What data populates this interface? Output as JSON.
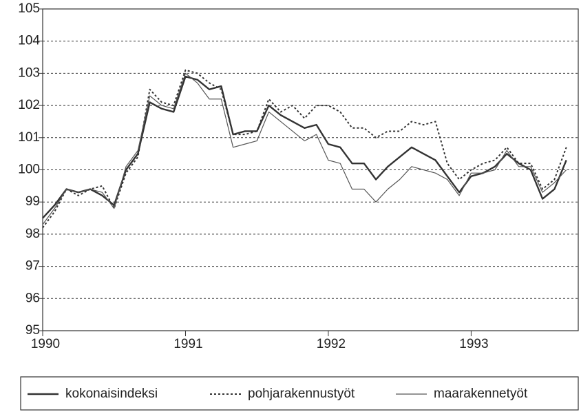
{
  "chart_data": {
    "type": "line",
    "x": [
      0,
      1,
      2,
      3,
      4,
      5,
      6,
      7,
      8,
      9,
      10,
      11,
      12,
      13,
      14,
      15,
      16,
      17,
      18,
      19,
      20,
      21,
      22,
      23,
      24,
      25,
      26,
      27,
      28,
      29,
      30,
      31,
      32,
      33,
      34,
      35,
      36,
      37,
      38,
      39,
      40,
      41,
      42,
      43,
      44
    ],
    "series": [
      {
        "name": "kokonaisindeksi",
        "color": "#333333",
        "values": [
          98.5,
          98.9,
          99.4,
          99.3,
          99.4,
          99.2,
          98.9,
          100.0,
          100.5,
          102.1,
          101.9,
          101.8,
          102.9,
          102.8,
          102.5,
          102.6,
          101.1,
          101.2,
          101.2,
          102.0,
          101.7,
          101.5,
          101.3,
          101.4,
          100.8,
          100.7,
          100.2,
          100.2,
          99.7,
          100.1,
          100.4,
          100.7,
          100.5,
          100.3,
          99.8,
          99.3,
          99.8,
          99.9,
          100.1,
          100.5,
          100.2,
          100.0,
          99.1,
          99.4,
          100.3
        ]
      },
      {
        "name": "pohjarakennustyöt",
        "color": "#333333",
        "values": [
          98.2,
          98.7,
          99.4,
          99.2,
          99.4,
          99.5,
          98.8,
          99.9,
          100.4,
          102.5,
          102.1,
          102.0,
          103.1,
          103.0,
          102.7,
          102.5,
          101.1,
          101.1,
          101.2,
          102.2,
          101.8,
          102.0,
          101.6,
          102.0,
          102.0,
          101.8,
          101.3,
          101.3,
          101.0,
          101.2,
          101.2,
          101.5,
          101.4,
          101.5,
          100.2,
          99.7,
          100.0,
          100.2,
          100.3,
          100.7,
          100.2,
          100.2,
          99.4,
          99.7,
          100.7
        ]
      },
      {
        "name": "maarakennetyöt",
        "color": "#555555",
        "values": [
          98.3,
          98.8,
          99.4,
          99.3,
          99.4,
          99.3,
          98.8,
          100.1,
          100.6,
          102.3,
          102.0,
          101.9,
          103.0,
          102.7,
          102.2,
          102.2,
          100.7,
          100.8,
          100.9,
          101.8,
          101.5,
          101.2,
          100.9,
          101.1,
          100.3,
          100.2,
          99.4,
          99.4,
          99.0,
          99.4,
          99.7,
          100.1,
          100.0,
          99.9,
          99.7,
          99.2,
          99.9,
          99.9,
          100.0,
          100.6,
          100.1,
          100.1,
          99.3,
          99.6,
          100.0
        ]
      }
    ],
    "xlim": [
      0,
      45
    ],
    "xticks": [
      {
        "value": 0,
        "label": "1990"
      },
      {
        "value": 12,
        "label": "1991"
      },
      {
        "value": 24,
        "label": "1992"
      },
      {
        "value": 36,
        "label": "1993"
      }
    ],
    "ylim": [
      95,
      105
    ],
    "yticks": [
      95,
      96,
      97,
      98,
      99,
      100,
      101,
      102,
      103,
      104,
      105
    ],
    "grid": true
  }
}
